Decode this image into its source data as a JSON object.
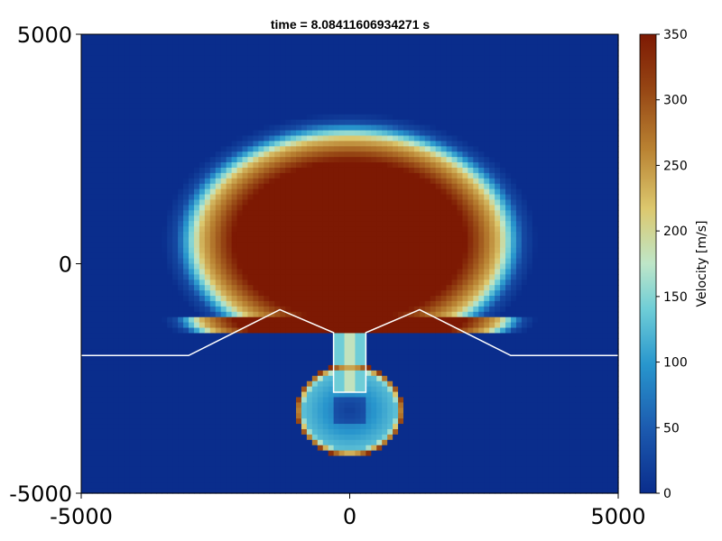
{
  "chart_data": {
    "type": "heatmap",
    "title": "time = 8.08411606934271 s",
    "xlabel": "",
    "ylabel": "",
    "xlim": [
      -5000,
      5000
    ],
    "ylim": [
      -5000,
      5000
    ],
    "x_ticks": [
      "-5000",
      "0",
      "5000"
    ],
    "y_ticks": [
      "-5000",
      "0",
      "5000"
    ],
    "x_tick_values": [
      -5000,
      0,
      5000
    ],
    "y_tick_values": [
      -5000,
      0,
      5000
    ],
    "grid": false,
    "colorbar": {
      "label": "Velocity [m/s]",
      "range": [
        0,
        350
      ],
      "ticks": [
        "0",
        "50",
        "100",
        "150",
        "200",
        "250",
        "300",
        "350"
      ],
      "tick_values": [
        0,
        50,
        100,
        150,
        200,
        250,
        300,
        350
      ],
      "colormap": "roma (reversed: blue → cyan → yellow → brown)"
    },
    "field": {
      "description_features": [
        "mushroom-shaped high-velocity plume",
        "vent conduit",
        "spherical chamber"
      ],
      "plume_peak_velocity": 350,
      "background_velocity": 0
    },
    "topography_line": {
      "color": "#ffffff",
      "points": [
        [
          -5000,
          -2000
        ],
        [
          -3000,
          -2000
        ],
        [
          -1300,
          -1000
        ],
        [
          -300,
          -1500
        ],
        [
          -300,
          -2800
        ],
        [
          300,
          -2800
        ],
        [
          300,
          -1500
        ],
        [
          1300,
          -1000
        ],
        [
          3000,
          -2000
        ],
        [
          5000,
          -2000
        ]
      ]
    }
  }
}
